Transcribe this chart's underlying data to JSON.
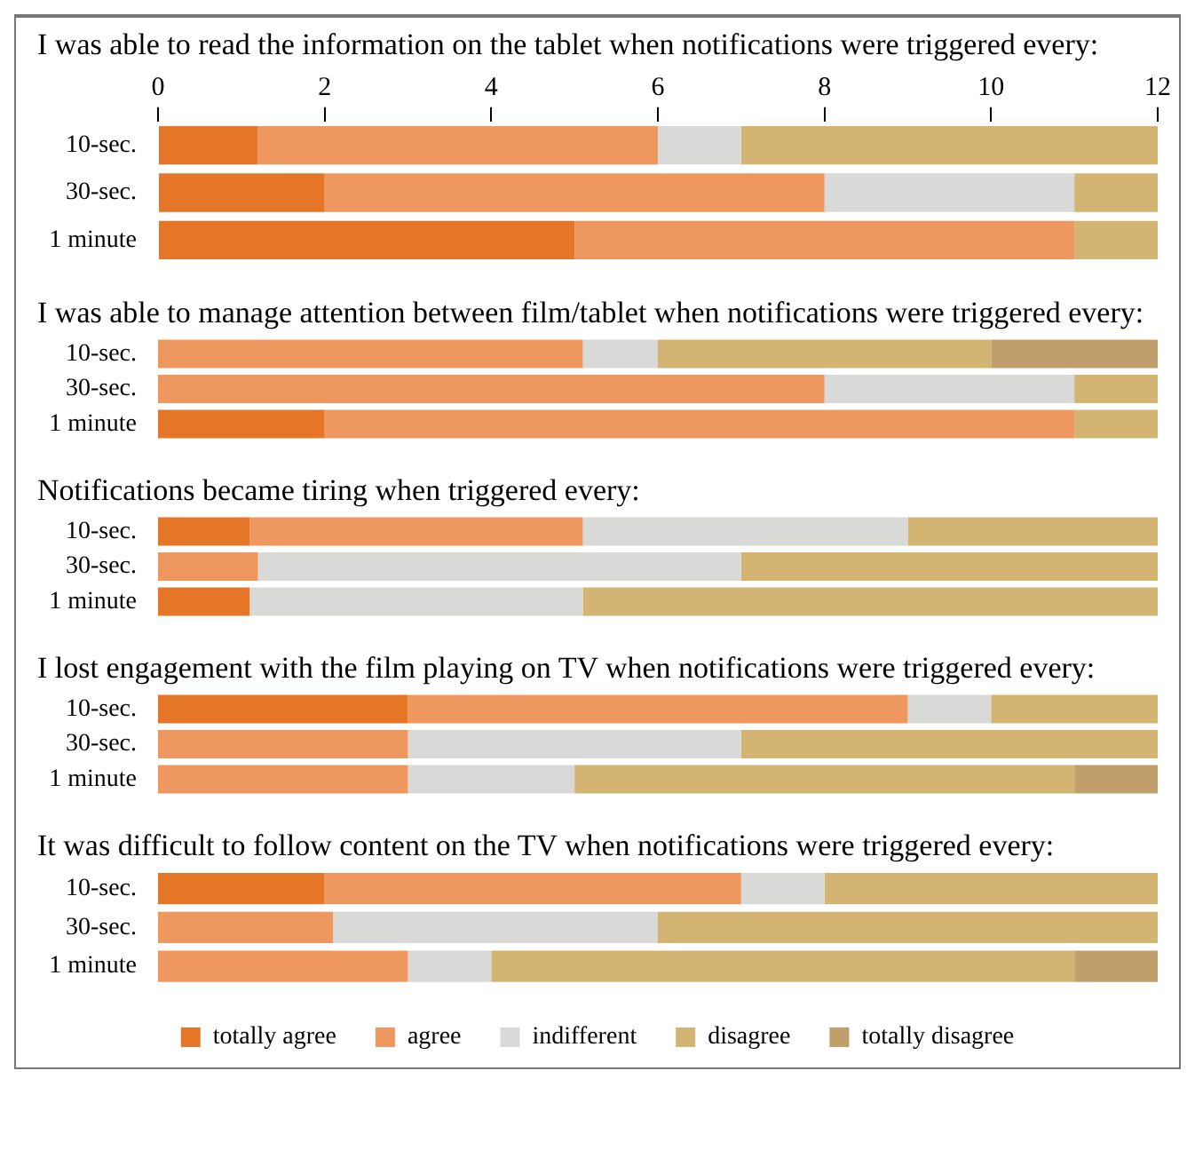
{
  "chart_data": [
    {
      "type": "bar",
      "orientation": "horizontal",
      "stacked": true,
      "grid": false,
      "title": "I was able to read the information on the tablet when notifications were triggered every:",
      "categories": [
        "10-sec.",
        "30-sec.",
        "1 minute"
      ],
      "xlim": [
        0,
        12
      ],
      "xticks": [
        0,
        2,
        4,
        6,
        8,
        10,
        12
      ],
      "series": [
        {
          "color": "#e67627",
          "values": [
            1.2,
            2,
            5
          ]
        },
        {
          "color": "#ee975e",
          "values": [
            4.8,
            6,
            6
          ]
        },
        {
          "color": "#d9d9d7",
          "values": [
            1,
            3,
            null
          ]
        },
        {
          "color": "#d3b473",
          "values": [
            5,
            1,
            1
          ]
        },
        {
          "color": "#c19f6c",
          "values": [
            null,
            null,
            null
          ]
        }
      ]
    },
    {
      "type": "bar",
      "orientation": "horizontal",
      "stacked": true,
      "grid": false,
      "tick_labels": "y",
      "title": "I was able to manage attention between film/tablet when notifications were triggered every:",
      "categories": [
        "10-sec.",
        "30-sec.",
        "1 minute"
      ],
      "xlim": [
        0,
        12
      ],
      "series": [
        {
          "color": "#e67627",
          "values": [
            null,
            null,
            2
          ]
        },
        {
          "color": "#ee975e",
          "values": [
            5.1,
            8,
            9
          ]
        },
        {
          "color": "#d9d9d7",
          "values": [
            0.9,
            3,
            null
          ]
        },
        {
          "color": "#d3b473",
          "values": [
            4,
            1,
            1
          ]
        },
        {
          "color": "#c19f6c",
          "values": [
            2,
            null,
            null
          ]
        }
      ]
    },
    {
      "type": "bar",
      "orientation": "horizontal",
      "stacked": true,
      "grid": false,
      "tick_labels": "y",
      "title": "Notifications became tiring when triggered every:",
      "categories": [
        "10-sec.",
        "30-sec.",
        "1 minute"
      ],
      "xlim": [
        0,
        12
      ],
      "series": [
        {
          "color": "#e67627",
          "values": [
            1.1,
            null,
            1.1
          ]
        },
        {
          "color": "#ee975e",
          "values": [
            4,
            1.2,
            null
          ]
        },
        {
          "color": "#d9d9d7",
          "values": [
            3.9,
            5.8,
            4
          ]
        },
        {
          "color": "#d3b473",
          "values": [
            3,
            5,
            6.9
          ]
        },
        {
          "color": "#c19f6c",
          "values": [
            null,
            null,
            null
          ]
        }
      ]
    },
    {
      "type": "bar",
      "orientation": "horizontal",
      "stacked": true,
      "grid": false,
      "tick_labels": "y",
      "title": "I lost engagement with the film playing on TV when notifications were triggered every:",
      "categories": [
        "10-sec.",
        "30-sec.",
        "1 minute"
      ],
      "xlim": [
        0,
        12
      ],
      "series": [
        {
          "color": "#e67627",
          "values": [
            3,
            null,
            null
          ]
        },
        {
          "color": "#ee975e",
          "values": [
            6,
            3,
            3
          ]
        },
        {
          "color": "#d9d9d7",
          "values": [
            1,
            4,
            2
          ]
        },
        {
          "color": "#d3b473",
          "values": [
            2,
            5,
            6
          ]
        },
        {
          "color": "#c19f6c",
          "values": [
            null,
            null,
            1
          ]
        }
      ]
    },
    {
      "type": "bar",
      "orientation": "horizontal",
      "stacked": true,
      "grid": false,
      "tick_labels": "y",
      "legend": "bottom",
      "title": "It was difficult to follow content on the TV when notifications were triggered every:",
      "categories": [
        "10-sec.",
        "30-sec.",
        "1 minute"
      ],
      "xlim": [
        0,
        12
      ],
      "series": [
        {
          "name": "totally agree",
          "color": "#e67627",
          "values": [
            2,
            null,
            null
          ]
        },
        {
          "name": "agree",
          "color": "#ee975e",
          "values": [
            5,
            2.1,
            3
          ]
        },
        {
          "name": "indifferent",
          "color": "#d9d9d7",
          "values": [
            1,
            3.9,
            1
          ]
        },
        {
          "name": "disagree",
          "color": "#d3b473",
          "values": [
            4,
            6,
            7
          ]
        },
        {
          "name": "totally disagree",
          "color": "#c19f6c",
          "values": [
            null,
            null,
            1
          ]
        }
      ]
    }
  ]
}
